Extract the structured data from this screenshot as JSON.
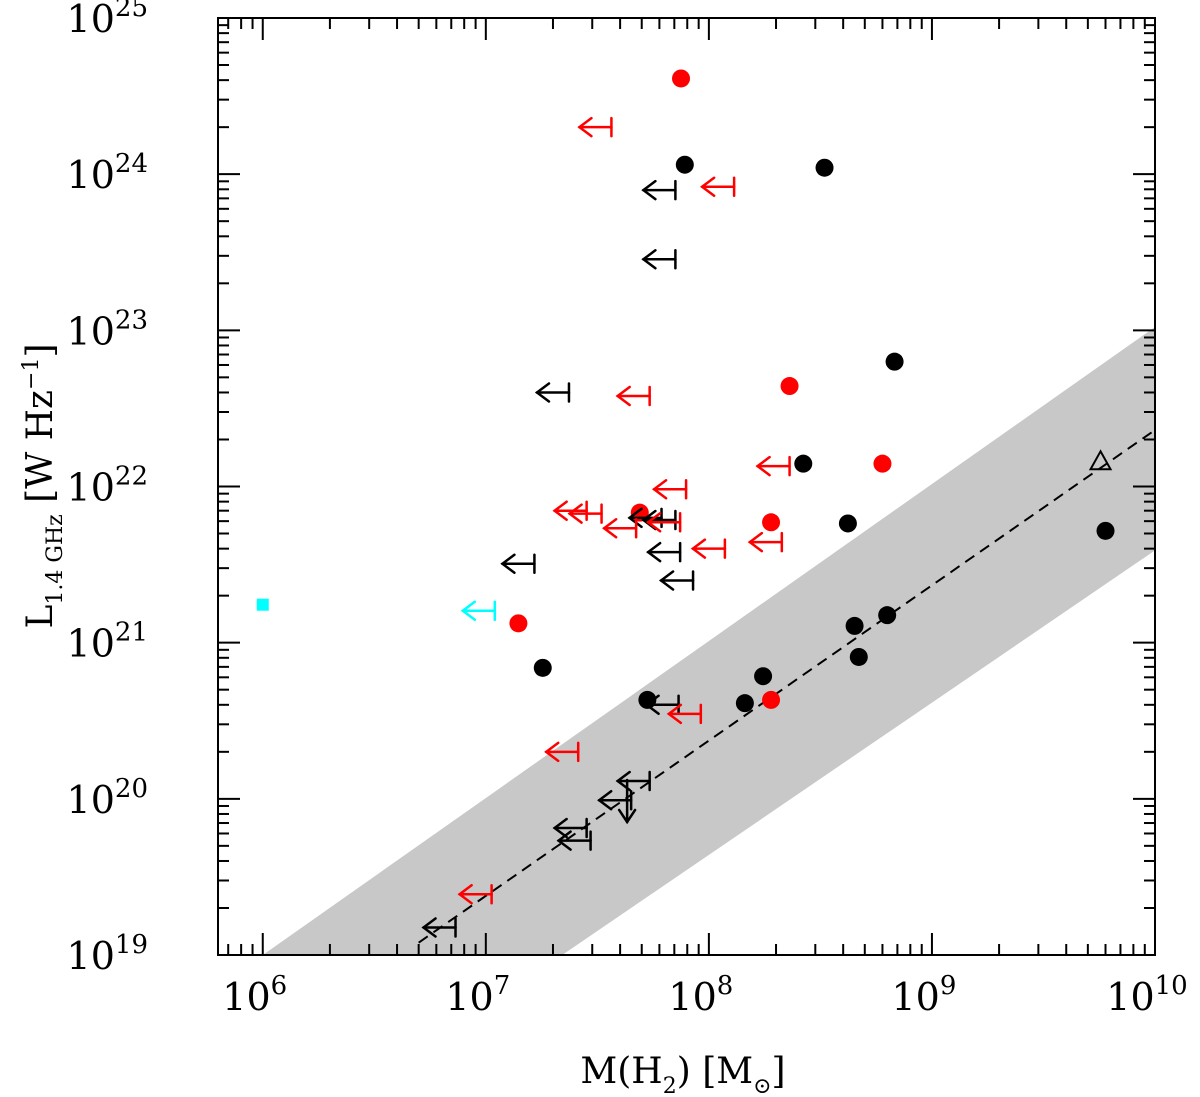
{
  "chart_data": {
    "type": "scatter",
    "x_scale": "log",
    "y_scale": "log",
    "xlim": [
      630000,
      10000000000
    ],
    "ylim": [
      1e+19,
      1e+25
    ],
    "x_axis": {
      "label_main": "M(H",
      "label_sub": "2",
      "label_tail": ") [M",
      "label_unit_symbol": "⊙",
      "label_close": "]",
      "ticks": [
        {
          "value": 1000000.0,
          "base": "10",
          "exp": "6"
        },
        {
          "value": 10000000.0,
          "base": "10",
          "exp": "7"
        },
        {
          "value": 100000000.0,
          "base": "10",
          "exp": "8"
        },
        {
          "value": 1000000000.0,
          "base": "10",
          "exp": "9"
        },
        {
          "value": 10000000000.0,
          "base": "10",
          "exp": "10"
        }
      ]
    },
    "y_axis": {
      "label_main": "L",
      "label_sub": "1.4 GHz",
      "label_tail": " [W Hz",
      "label_exp": "−1",
      "label_close": "]",
      "ticks": [
        {
          "value": 1e+19,
          "base": "10",
          "exp": "19"
        },
        {
          "value": 1e+20,
          "base": "10",
          "exp": "20"
        },
        {
          "value": 1e+21,
          "base": "10",
          "exp": "21"
        },
        {
          "value": 1e+22,
          "base": "10",
          "exp": "22"
        },
        {
          "value": 1e+23,
          "base": "10",
          "exp": "23"
        },
        {
          "value": 1e+24,
          "base": "10",
          "exp": "24"
        },
        {
          "value": 1e+25,
          "base": "10",
          "exp": "25"
        }
      ]
    },
    "colors": {
      "black": "#000000",
      "red": "#ff0000",
      "cyan": "#00ffff",
      "band": "#c8c8c8"
    },
    "relation": {
      "description": "dashed line with shaded scatter band",
      "line": [
        [
          5000000.0,
          1.2e+19
        ],
        [
          10000000000.0,
          2.3e+22
        ]
      ],
      "band_upper": [
        [
          1000000.0,
          1e+19
        ],
        [
          10000000000.0,
          1.05e+23
        ]
      ],
      "band_lower": [
        [
          22000000.0,
          1e+19
        ],
        [
          10000000000.0,
          3.9e+21
        ]
      ]
    },
    "series": [
      {
        "name": "black detections",
        "marker": "filled-circle",
        "color": "#000000",
        "points": [
          [
            78000000.0,
            1.15e+24
          ],
          [
            330000000.0,
            1.1e+24
          ],
          [
            680000000.0,
            6.3e+22
          ],
          [
            265000000.0,
            1.4e+22
          ],
          [
            420000000.0,
            5.8e+21
          ],
          [
            6000000000.0,
            5.2e+21
          ],
          [
            630000000.0,
            1.5e+21
          ],
          [
            450000000.0,
            1.28e+21
          ],
          [
            470000000.0,
            8.1e+20
          ],
          [
            18000000.0,
            6.9e+20
          ],
          [
            175000000.0,
            6.1e+20
          ],
          [
            145000000.0,
            4.1e+20
          ],
          [
            53000000.0,
            4.3e+20
          ]
        ]
      },
      {
        "name": "red detections",
        "marker": "filled-circle",
        "color": "#ff0000",
        "points": [
          [
            75000000.0,
            4.1e+24
          ],
          [
            230000000.0,
            4.4e+22
          ],
          [
            600000000.0,
            1.4e+22
          ],
          [
            49000000.0,
            6.8e+21
          ],
          [
            190000000.0,
            5.9e+21
          ],
          [
            14000000.0,
            1.33e+21
          ],
          [
            190000000.0,
            4.3e+20
          ]
        ]
      },
      {
        "name": "black upper limits",
        "marker": "left-arrow",
        "color": "#000000",
        "points": [
          [
            60000000.0,
            7.9e+23
          ],
          [
            60000000.0,
            2.85e+23
          ],
          [
            20000000.0,
            4e+22
          ],
          [
            52000000.0,
            6.3e+21
          ],
          [
            60000000.0,
            6.1e+21
          ],
          [
            63000000.0,
            3.8e+21
          ],
          [
            72000000.0,
            2.5e+21
          ],
          [
            14000000.0,
            3.2e+21
          ],
          [
            62000000.0,
            4e+20
          ],
          [
            46000000.0,
            1.3e+20
          ],
          [
            38000000.0,
            9.8e+19
          ],
          [
            24000000.0,
            6.5e+19
          ],
          [
            25000000.0,
            5.4e+19
          ],
          [
            6200000.0,
            1.5e+19
          ]
        ]
      },
      {
        "name": "red upper limits",
        "marker": "left-arrow",
        "color": "#ff0000",
        "points": [
          [
            31000000.0,
            2e+24
          ],
          [
            110000000.0,
            8.3e+23
          ],
          [
            46000000.0,
            3.8e+22
          ],
          [
            195000000.0,
            1.35e+22
          ],
          [
            67000000.0,
            9.6e+21
          ],
          [
            24000000.0,
            7e+21
          ],
          [
            28000000.0,
            6.7e+21
          ],
          [
            63000000.0,
            5.9e+21
          ],
          [
            40000000.0,
            5.4e+21
          ],
          [
            100000000.0,
            4e+21
          ],
          [
            180000000.0,
            4.4e+21
          ],
          [
            78000000.0,
            3.5e+20
          ],
          [
            22000000.0,
            2e+20
          ],
          [
            9000000.0,
            2.45e+19
          ]
        ]
      },
      {
        "name": "cyan upper limit",
        "marker": "left-arrow",
        "color": "#00ffff",
        "points": [
          [
            9300000.0,
            1.6e+21
          ]
        ]
      },
      {
        "name": "cyan square",
        "marker": "filled-square",
        "color": "#00ffff",
        "points": [
          [
            1000000.0,
            1.75e+21
          ]
        ]
      },
      {
        "name": "open triangle",
        "marker": "open-triangle",
        "color": "#000000",
        "points": [
          [
            5700000000.0,
            1.45e+22
          ]
        ]
      },
      {
        "name": "downward limit",
        "marker": "down-arrow",
        "color": "#000000",
        "points": [
          [
            43000000.0,
            9e+19
          ]
        ]
      }
    ]
  }
}
